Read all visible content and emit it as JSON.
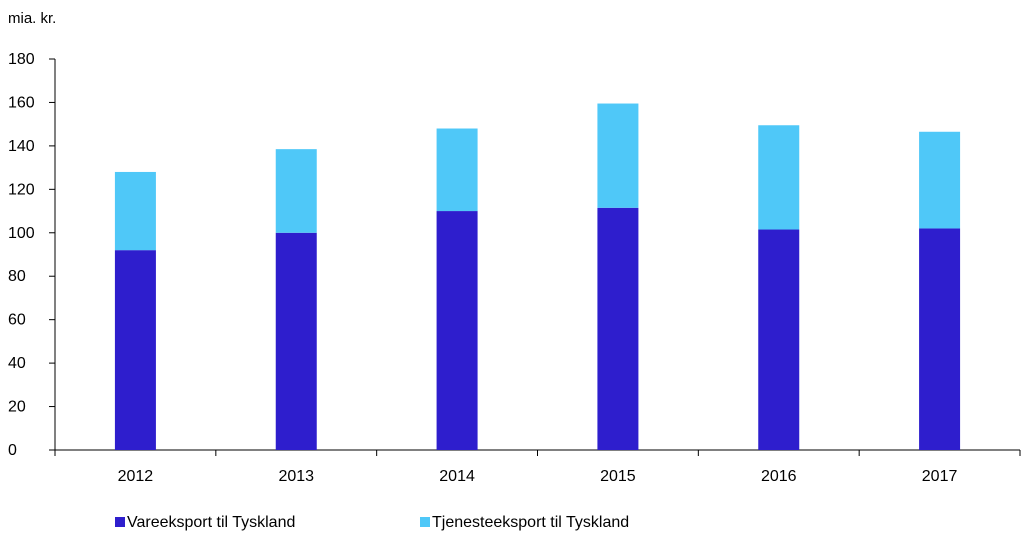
{
  "chart_data": {
    "type": "bar",
    "stacked": true,
    "title": "",
    "xlabel": "",
    "ylabel": "mia. kr.",
    "ylim": [
      0,
      180
    ],
    "yticks": [
      0,
      20,
      40,
      60,
      80,
      100,
      120,
      140,
      160,
      180
    ],
    "grid": false,
    "legend_position": "bottom",
    "categories": [
      "2012",
      "2013",
      "2014",
      "2015",
      "2016",
      "2017"
    ],
    "series": [
      {
        "name": "Vareeksport til Tyskland",
        "color": "#2e1ecd",
        "values": [
          92,
          100,
          110,
          111.5,
          101.5,
          102
        ]
      },
      {
        "name": "Tjenesteeksport til Tyskland",
        "color": "#4fc8f8",
        "values": [
          36,
          38.5,
          38,
          48,
          48,
          44.5
        ]
      }
    ]
  }
}
